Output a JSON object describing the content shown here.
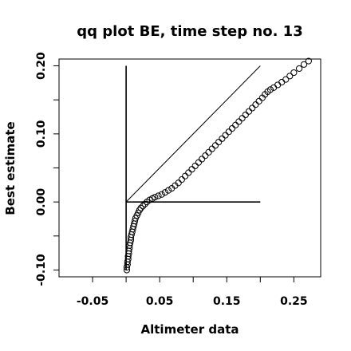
{
  "chart_data": {
    "type": "scatter",
    "title": "qq plot BE, time step no. 13",
    "xlabel": "Altimeter data",
    "ylabel": "Best estimate",
    "xlim": [
      -0.1,
      0.29
    ],
    "ylim": [
      -0.11,
      0.21
    ],
    "x_ticks": [
      -0.05,
      0.05,
      0.15,
      0.25
    ],
    "x_tick_labels": [
      "-0.05",
      "0.05",
      "0.15",
      "0.25"
    ],
    "x_minor_ticks": [
      0.0,
      0.1,
      0.2
    ],
    "y_ticks": [
      -0.1,
      0.0,
      0.1,
      0.2
    ],
    "y_tick_labels": [
      "-0.10",
      "0.00",
      "0.10",
      "0.20"
    ],
    "y_minor_ticks": [
      -0.05,
      0.05,
      0.15
    ],
    "grid": false,
    "marker": "open-circle",
    "reference_lines": [
      {
        "kind": "diagonal",
        "from": [
          0.0,
          0.0
        ],
        "to": [
          0.2,
          0.2
        ]
      },
      {
        "kind": "horizontal",
        "from": [
          0.0,
          0.0
        ],
        "to": [
          0.2,
          0.0
        ]
      },
      {
        "kind": "vertical",
        "from": [
          0.0,
          -0.1
        ],
        "to": [
          0.0,
          0.2
        ]
      }
    ],
    "series": [
      {
        "points": [
          [
            0.001,
            -0.1
          ],
          [
            0.001,
            -0.096
          ],
          [
            0.002,
            -0.092
          ],
          [
            0.002,
            -0.088
          ],
          [
            0.003,
            -0.084
          ],
          [
            0.003,
            -0.08
          ],
          [
            0.004,
            -0.076
          ],
          [
            0.004,
            -0.072
          ],
          [
            0.005,
            -0.068
          ],
          [
            0.005,
            -0.064
          ],
          [
            0.006,
            -0.06
          ],
          [
            0.007,
            -0.056
          ],
          [
            0.007,
            -0.052
          ],
          [
            0.008,
            -0.048
          ],
          [
            0.009,
            -0.044
          ],
          [
            0.01,
            -0.04
          ],
          [
            0.011,
            -0.036
          ],
          [
            0.012,
            -0.032
          ],
          [
            0.013,
            -0.028
          ],
          [
            0.014,
            -0.024
          ],
          [
            0.016,
            -0.02
          ],
          [
            0.018,
            -0.016
          ],
          [
            0.02,
            -0.012
          ],
          [
            0.022,
            -0.009
          ],
          [
            0.025,
            -0.006
          ],
          [
            0.028,
            -0.003
          ],
          [
            0.031,
            0.0
          ],
          [
            0.035,
            0.003
          ],
          [
            0.039,
            0.005
          ],
          [
            0.043,
            0.007
          ],
          [
            0.048,
            0.009
          ],
          [
            0.053,
            0.011
          ],
          [
            0.058,
            0.014
          ],
          [
            0.063,
            0.017
          ],
          [
            0.068,
            0.02
          ],
          [
            0.073,
            0.024
          ],
          [
            0.078,
            0.028
          ],
          [
            0.083,
            0.033
          ],
          [
            0.088,
            0.038
          ],
          [
            0.093,
            0.043
          ],
          [
            0.098,
            0.048
          ],
          [
            0.103,
            0.053
          ],
          [
            0.108,
            0.058
          ],
          [
            0.113,
            0.063
          ],
          [
            0.118,
            0.068
          ],
          [
            0.123,
            0.073
          ],
          [
            0.128,
            0.078
          ],
          [
            0.133,
            0.083
          ],
          [
            0.138,
            0.088
          ],
          [
            0.143,
            0.093
          ],
          [
            0.148,
            0.098
          ],
          [
            0.153,
            0.103
          ],
          [
            0.158,
            0.108
          ],
          [
            0.163,
            0.113
          ],
          [
            0.168,
            0.118
          ],
          [
            0.173,
            0.123
          ],
          [
            0.178,
            0.128
          ],
          [
            0.183,
            0.133
          ],
          [
            0.188,
            0.138
          ],
          [
            0.193,
            0.143
          ],
          [
            0.198,
            0.148
          ],
          [
            0.203,
            0.153
          ],
          [
            0.207,
            0.158
          ],
          [
            0.211,
            0.162
          ],
          [
            0.215,
            0.165
          ],
          [
            0.22,
            0.168
          ],
          [
            0.226,
            0.172
          ],
          [
            0.232,
            0.176
          ],
          [
            0.238,
            0.18
          ],
          [
            0.244,
            0.185
          ],
          [
            0.25,
            0.19
          ],
          [
            0.258,
            0.196
          ],
          [
            0.265,
            0.202
          ],
          [
            0.272,
            0.207
          ]
        ]
      }
    ]
  }
}
